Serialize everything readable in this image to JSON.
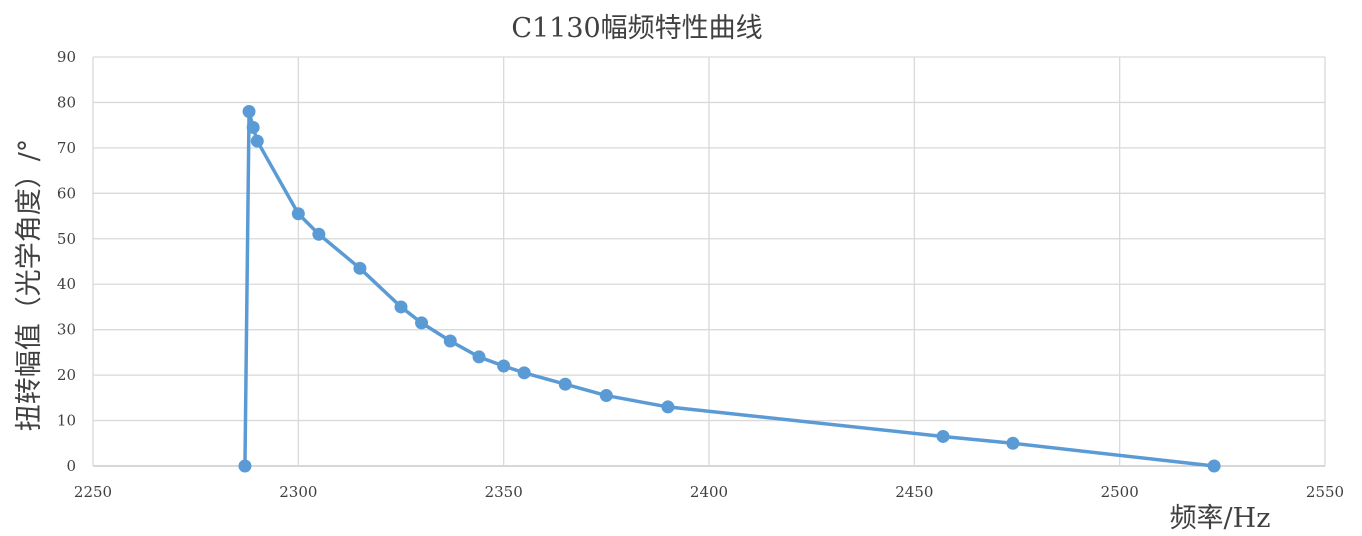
{
  "chart_data": {
    "type": "scatter",
    "title": "C1130幅频特性曲线",
    "xlabel": "频率/Hz",
    "ylabel": "扭转幅值（光学角度）/°",
    "xlim": [
      2250,
      2550
    ],
    "ylim": [
      0,
      90
    ],
    "x_ticks": [
      2250,
      2300,
      2350,
      2400,
      2450,
      2500,
      2550
    ],
    "y_ticks": [
      0,
      10,
      20,
      30,
      40,
      50,
      60,
      70,
      80,
      90
    ],
    "grid": true,
    "legend": "none",
    "smooth_lines": true,
    "series": [
      {
        "color": "#5b9bd5",
        "x": [
          2287,
          2288,
          2289,
          2290,
          2300,
          2305,
          2315,
          2325,
          2330,
          2337,
          2344,
          2350,
          2355,
          2365,
          2375,
          2390,
          2457,
          2474,
          2523
        ],
        "y": [
          0,
          78,
          74.5,
          71.5,
          55.5,
          51,
          43.5,
          35,
          31.5,
          27.5,
          24,
          22,
          20.5,
          18,
          15.5,
          13,
          6.5,
          5,
          0
        ]
      }
    ]
  }
}
